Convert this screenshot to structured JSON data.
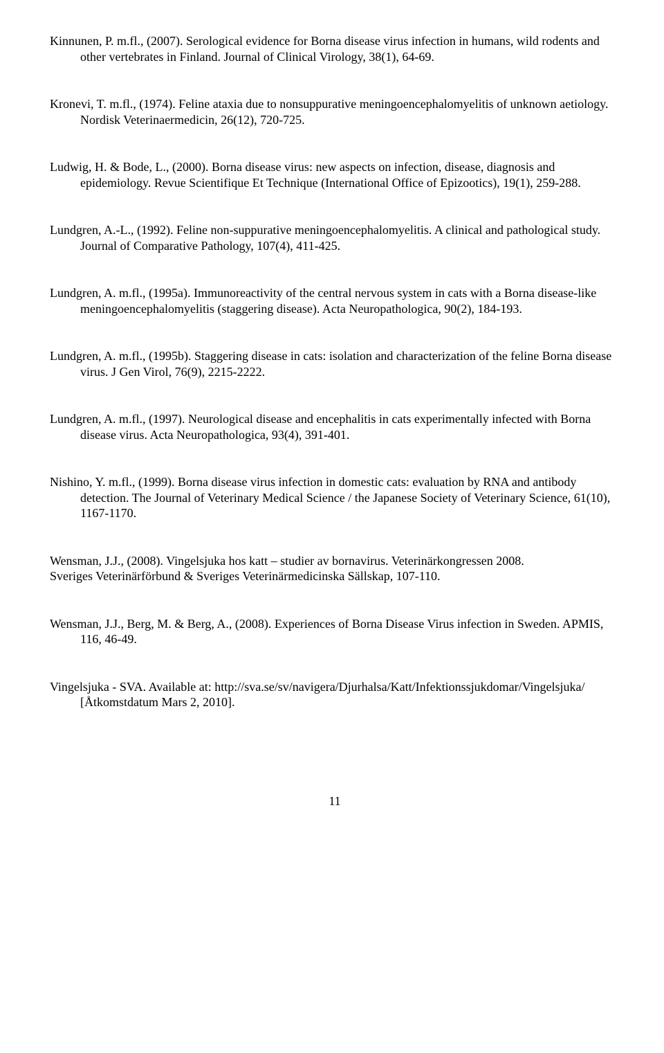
{
  "references": [
    {
      "text": "Kinnunen, P. m.fl., (2007). Serological evidence for Borna disease virus infection in humans, wild rodents and other vertebrates in Finland. Journal of Clinical Virology, 38(1), 64-69."
    },
    {
      "text": "Kronevi, T. m.fl., (1974). Feline ataxia due to nonsuppurative meningoencephalomyelitis of unknown aetiology. Nordisk Veterinaermedicin, 26(12), 720-725."
    },
    {
      "text": "Ludwig, H. & Bode, L., (2000). Borna disease virus: new aspects on infection, disease, diagnosis and epidemiology. Revue Scientifique Et Technique (International Office of Epizootics), 19(1), 259-288."
    },
    {
      "text": "Lundgren, A.-L., (1992). Feline non-suppurative meningoencephalomyelitis. A clinical and pathological study. Journal of Comparative Pathology, 107(4), 411-425."
    },
    {
      "text": "Lundgren, A. m.fl., (1995a). Immunoreactivity of the central nervous system in cats with a Borna disease-like meningoencephalomyelitis (staggering disease). Acta Neuropathologica, 90(2), 184-193."
    },
    {
      "text": "Lundgren, A. m.fl., (1995b). Staggering disease in cats: isolation and characterization of the feline Borna disease virus. J Gen Virol, 76(9), 2215-2222."
    },
    {
      "text": "Lundgren, A. m.fl., (1997). Neurological disease and encephalitis in cats experimentally infected with Borna disease virus. Acta Neuropathologica, 93(4), 391-401."
    },
    {
      "text": "Nishino, Y. m.fl., (1999). Borna disease virus infection in domestic cats: evaluation by RNA and antibody detection. The Journal of Veterinary Medical Science / the Japanese Society of Veterinary Science, 61(10), 1167-1170."
    },
    {
      "line1": "Wensman, J.J., (2008). Vingelsjuka hos katt – studier av bornavirus. Veterinärkongressen 2008.",
      "line2": "Sveriges Veterinärförbund & Sveriges Veterinärmedicinska Sällskap, 107-110."
    },
    {
      "text": "Wensman, J.J., Berg, M. & Berg, A., (2008). Experiences of Borna Disease Virus infection in Sweden. APMIS, 116, 46-49."
    },
    {
      "text": "Vingelsjuka - SVA. Available at: http://sva.se/sv/navigera/Djurhalsa/Katt/Infektionssjukdomar/Vingelsjuka/ [Åtkomstdatum Mars 2, 2010]."
    }
  ],
  "page_number": "11"
}
